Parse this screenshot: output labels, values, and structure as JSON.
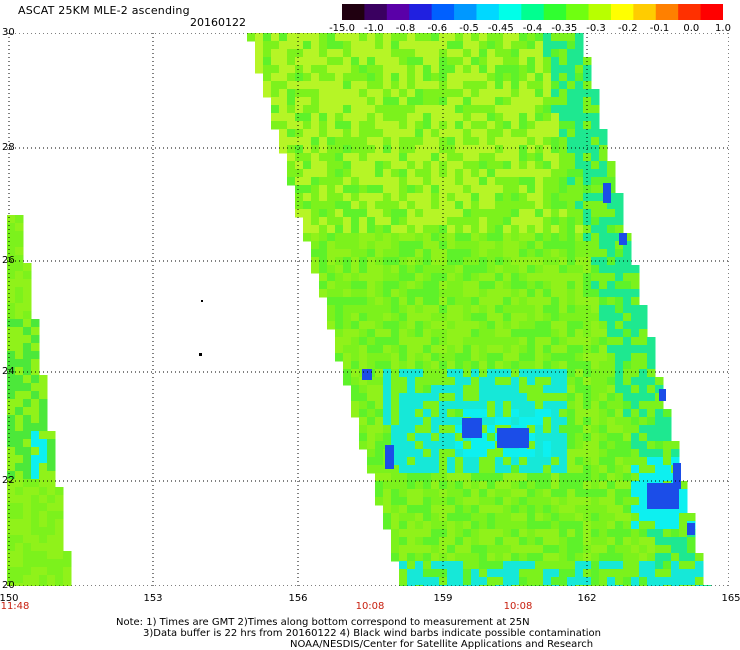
{
  "header": {
    "title": "ASCAT 25KM MLE-2 ascending",
    "date": "20160122"
  },
  "colorbar": {
    "colors": [
      "#200010",
      "#3a0060",
      "#5a00a8",
      "#2020e0",
      "#0060ff",
      "#0098ff",
      "#00d8ff",
      "#00ffe8",
      "#00ff90",
      "#30ff30",
      "#70ff10",
      "#b8ff00",
      "#ffff00",
      "#ffcc00",
      "#ff8000",
      "#ff3000",
      "#ff0000"
    ],
    "labels": [
      "-15.0",
      "-1.0",
      "-0.8",
      "-0.6",
      "-0.5",
      "-0.45",
      "-0.4",
      "-0.35",
      "-0.3",
      "-0.2",
      "-0.1",
      "0.0",
      "1.0"
    ]
  },
  "axes": {
    "lat_labels": [
      "30",
      "28",
      "26",
      "24",
      "22",
      "20"
    ],
    "lon_labels": [
      "150",
      "153",
      "156",
      "159",
      "162",
      "165"
    ],
    "time_labels": [
      "11:48",
      "10:08",
      "10:08"
    ]
  },
  "map_data": {
    "lat_range": [
      20,
      30
    ],
    "lon_range": [
      150,
      165
    ],
    "grid": "dotted every 2° latitude and 3° longitude",
    "swath_colors": [
      "#7cf21c",
      "#5ef22a",
      "#90f21a",
      "#b6f526",
      "#4ce83a",
      "#2fe850",
      "#1ee890",
      "#16e8d8",
      "#0df0f0",
      "#1b4de8",
      "#1010e0"
    ]
  },
  "notes": {
    "line1": "Note: 1) Times are GMT 2)Times along bottom correspond to measurement at 25N",
    "line2": "3)Data buffer is 22 hrs from 20160122 4) Black wind barbs indicate possible contamination",
    "line3": "NOAA/NESDIS/Center for Satellite Applications and Research"
  }
}
